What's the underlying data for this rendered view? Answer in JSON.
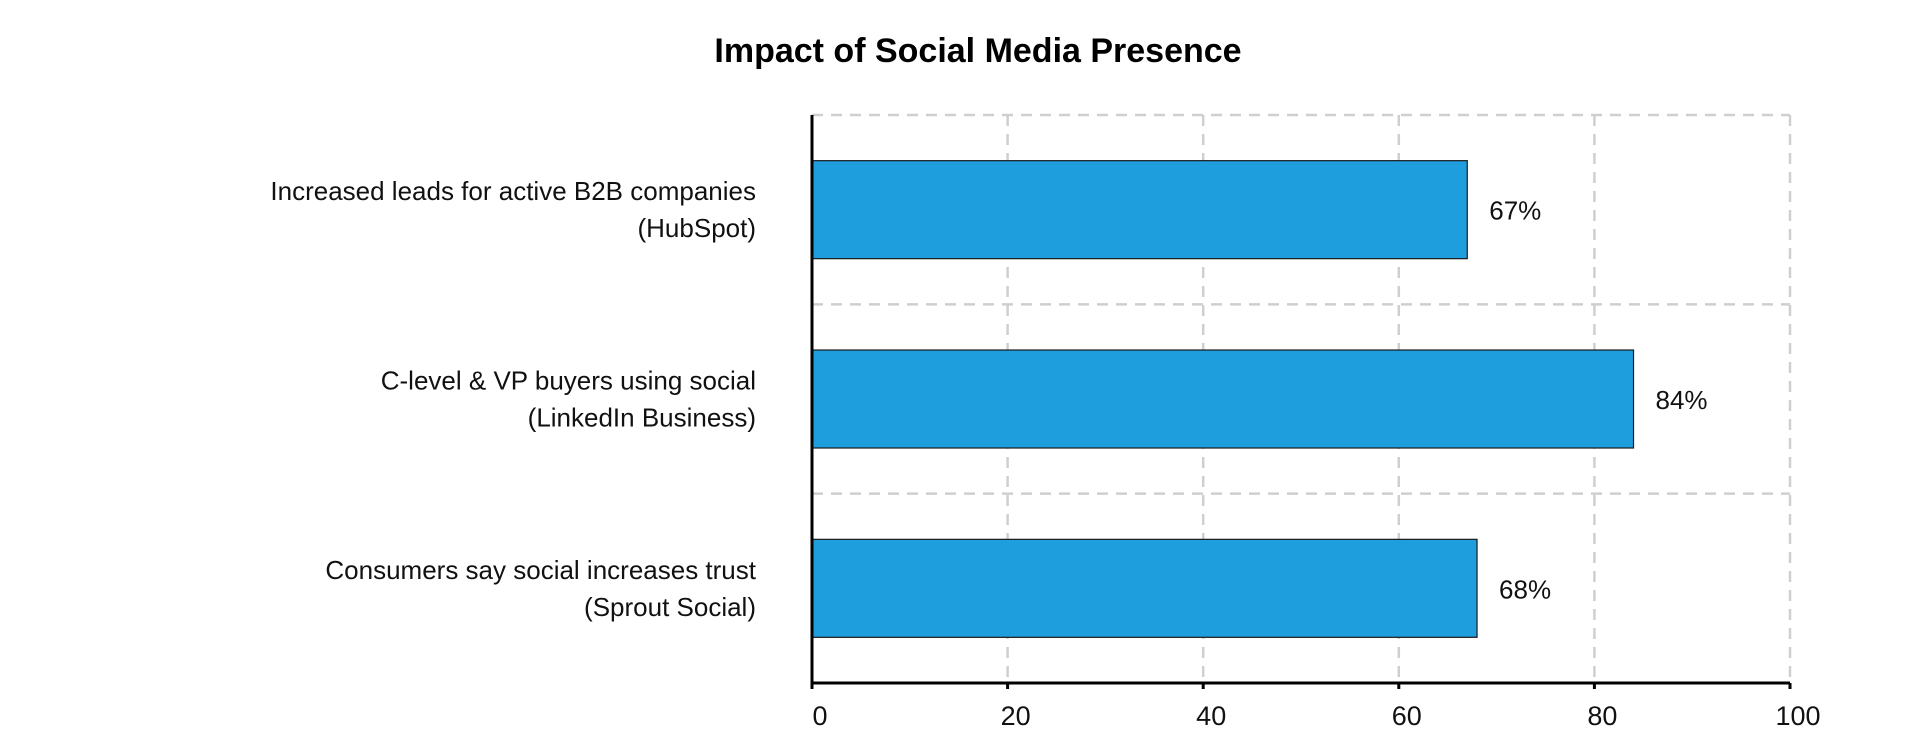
{
  "chart_data": {
    "type": "bar",
    "orientation": "horizontal",
    "title": "Impact of Social Media Presence",
    "xlabel": "",
    "ylabel": "",
    "categories": [
      [
        "Increased leads for active B2B companies",
        "(HubSpot)"
      ],
      [
        "C-level & VP buyers using social",
        "(LinkedIn Business)"
      ],
      [
        "Consumers say social increases trust",
        "(Sprout Social)"
      ]
    ],
    "values": [
      67,
      84,
      68
    ],
    "value_labels": [
      "67%",
      "84%",
      "68%"
    ],
    "xlim": [
      0,
      100
    ],
    "xticks": [
      0,
      20,
      40,
      60,
      80,
      100
    ],
    "grid": true,
    "bar_color": "#1f9edd",
    "legend": "none"
  }
}
